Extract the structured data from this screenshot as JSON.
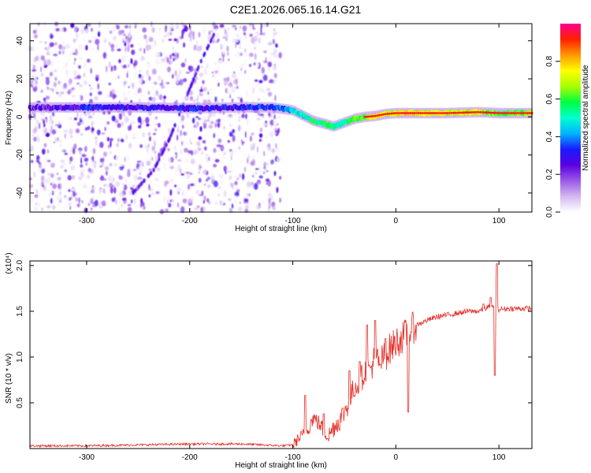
{
  "title": "C2E1.2026.065.16.14.G21",
  "chart_data": [
    {
      "type": "heatmap",
      "name": "spectrogram",
      "xlabel": "Height of straight line (km)",
      "ylabel": "Frequency (Hz)",
      "xlim": [
        -355,
        132
      ],
      "ylim": [
        -50,
        49
      ],
      "xticks": [
        -300,
        -200,
        -100,
        0,
        100
      ],
      "yticks": [
        -40,
        -20,
        0,
        20,
        40
      ],
      "colorbar": {
        "label": "Normalized spectral amplitude",
        "range": [
          0,
          1
        ],
        "ticks": [
          0.0,
          0.2,
          0.4,
          0.6,
          0.8
        ],
        "colors": [
          "#ffffff",
          "#d4b8f0",
          "#9b59e6",
          "#5a00e0",
          "#1a1aff",
          "#00b4ff",
          "#00ffd0",
          "#00ff40",
          "#a8ff00",
          "#ffff00",
          "#ff9900",
          "#ff2000",
          "#ff0090"
        ]
      },
      "noise_region_x": [
        -355,
        -112
      ],
      "ridge": {
        "x": [
          -355,
          -300,
          -250,
          -200,
          -150,
          -120,
          -100,
          -80,
          -60,
          -50,
          -40,
          -30,
          -20,
          -10,
          0,
          20,
          50,
          80,
          100,
          132
        ],
        "y": [
          5,
          5,
          5,
          4.5,
          5,
          5,
          3.5,
          -2,
          -5,
          -3,
          -1,
          0,
          0.5,
          1.5,
          2,
          2,
          2,
          2.5,
          2,
          2
        ],
        "amp": [
          0.22,
          0.3,
          0.28,
          0.3,
          0.3,
          0.35,
          0.45,
          0.55,
          0.55,
          0.5,
          0.6,
          0.6,
          0.75,
          0.7,
          0.75,
          0.75,
          0.7,
          0.7,
          0.6,
          0.65
        ]
      },
      "secondary_track": {
        "x": [
          -255,
          -235,
          -220,
          -205,
          -190,
          -175
        ],
        "y": [
          -40,
          -28,
          -12,
          8,
          28,
          45
        ]
      }
    },
    {
      "type": "line",
      "name": "snr",
      "xlabel": "Height of straight line (km)",
      "ylabel": "SNR (10 * v/v)",
      "multiplier_label": "(x10⁴)",
      "xlim": [
        -355,
        132
      ],
      "ylim": [
        0,
        2.05
      ],
      "xticks": [
        -300,
        -200,
        -100,
        0,
        100
      ],
      "yticks": [
        0.5,
        1.0,
        1.5,
        2.0
      ],
      "color": "#e8302a",
      "series": [
        {
          "name": "SNR",
          "x": [
            -355,
            -300,
            -250,
            -200,
            -150,
            -110,
            -100,
            -95,
            -90,
            -85,
            -80,
            -75,
            -70,
            -65,
            -60,
            -55,
            -50,
            -45,
            -40,
            -35,
            -30,
            -25,
            -20,
            -15,
            -10,
            -5,
            0,
            5,
            10,
            15,
            20,
            30,
            40,
            50,
            60,
            70,
            80,
            85,
            90,
            95,
            100,
            110,
            120,
            132
          ],
          "y": [
            0.03,
            0.03,
            0.04,
            0.05,
            0.05,
            0.03,
            0.04,
            0.1,
            0.15,
            0.22,
            0.34,
            0.28,
            0.2,
            0.14,
            0.24,
            0.3,
            0.4,
            0.52,
            0.68,
            0.72,
            0.85,
            0.86,
            1.0,
            0.95,
            1.02,
            1.1,
            1.16,
            1.2,
            1.25,
            1.3,
            1.35,
            1.4,
            1.44,
            1.46,
            1.48,
            1.5,
            1.5,
            1.52,
            1.55,
            1.54,
            1.52,
            1.53,
            1.53,
            1.53
          ]
        }
      ],
      "spikes": {
        "x": [
          -88,
          -70,
          -45,
          -35,
          -28,
          -20,
          -15,
          -10,
          12,
          85,
          92,
          96,
          98
        ],
        "y": [
          0.58,
          0.38,
          0.85,
          0.95,
          1.35,
          1.4,
          0.92,
          1.2,
          0.4,
          1.58,
          1.65,
          0.8,
          2.02
        ]
      }
    }
  ]
}
